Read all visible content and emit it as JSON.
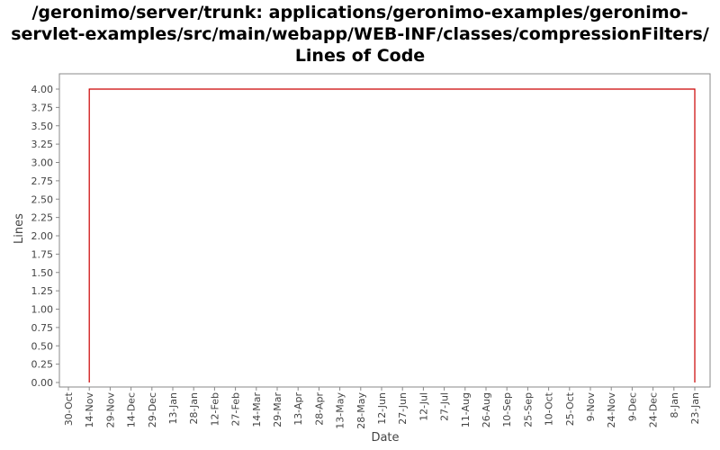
{
  "chart_data": {
    "type": "line",
    "title": "/geronimo/server/trunk: applications/geronimo-examples/geronimo-servlet-examples/src/main/webapp/WEB-INF/classes/compressionFilters/ Lines of Code",
    "xlabel": "Date",
    "ylabel": "Lines",
    "ylim": [
      0,
      4
    ],
    "y_ticks": [
      "0.00",
      "0.25",
      "0.50",
      "0.75",
      "1.00",
      "1.25",
      "1.50",
      "1.75",
      "2.00",
      "2.25",
      "2.50",
      "2.75",
      "3.00",
      "3.25",
      "3.50",
      "3.75",
      "4.00"
    ],
    "x_ticks": [
      "30-Oct",
      "14-Nov",
      "29-Nov",
      "14-Dec",
      "29-Dec",
      "13-Jan",
      "28-Jan",
      "12-Feb",
      "27-Feb",
      "14-Mar",
      "29-Mar",
      "13-Apr",
      "28-Apr",
      "13-May",
      "28-May",
      "12-Jun",
      "27-Jun",
      "12-Jul",
      "27-Jul",
      "11-Aug",
      "26-Aug",
      "10-Sep",
      "25-Sep",
      "10-Oct",
      "25-Oct",
      "9-Nov",
      "24-Nov",
      "9-Dec",
      "24-Dec",
      "8-Jan",
      "23-Jan"
    ],
    "grid": false,
    "legend": "none",
    "series": [
      {
        "color": "#cc0000",
        "points": [
          {
            "x": "14-Nov",
            "y": 0
          },
          {
            "x": "14-Nov",
            "y": 4
          },
          {
            "x": "23-Jan",
            "y": 4
          },
          {
            "x": "23-Jan",
            "y": 0
          }
        ]
      }
    ]
  }
}
